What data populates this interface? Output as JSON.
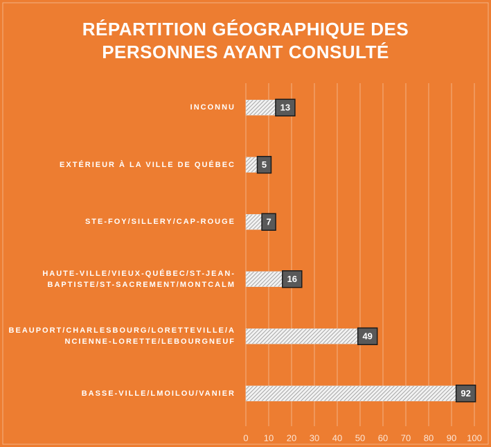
{
  "chart_data": {
    "type": "bar",
    "orientation": "horizontal",
    "title": "RÉPARTITION GÉOGRAPHIQUE DES PERSONNES AYANT CONSULTÉ",
    "categories": [
      "INCONNU",
      "EXTÉRIEUR À LA VILLE DE QUÉBEC",
      "STE-FOY/SILLERY/CAP-ROUGE",
      "HAUTE-VILLE/VIEUX-QUÉBEC/ST-JEAN-BAPTISTE/ST-SACREMENT/MONTCALM",
      "BEAUPORT/CHARLESBOURG/LORETTEVILLE/ANCIENNE-LORETTE/LEBOURGNEUF",
      "BASSE-VILLE/LMOILOU/VANIER"
    ],
    "values": [
      13,
      5,
      7,
      16,
      49,
      92
    ],
    "color": "#d9d9d9",
    "xlim": [
      0,
      100
    ],
    "xticks": [
      0,
      10,
      20,
      30,
      40,
      50,
      60,
      70,
      80,
      90,
      100
    ],
    "grid": true
  }
}
